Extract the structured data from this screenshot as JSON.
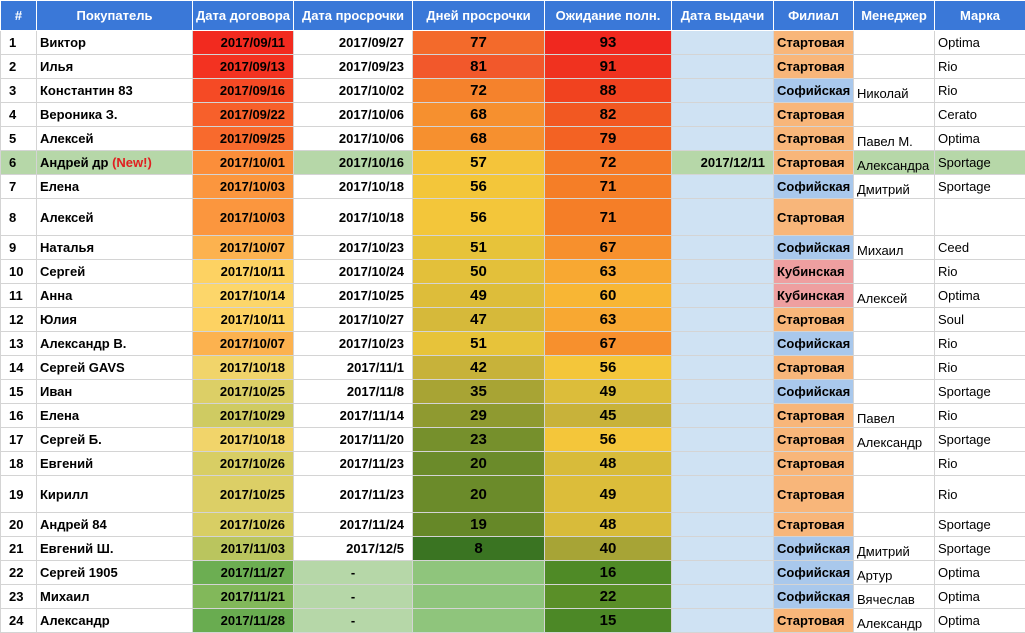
{
  "headers": {
    "num": "#",
    "customer": "Покупатель",
    "contract_date": "Дата договора",
    "overdue_date": "Дата просрочки",
    "overdue_days": "Дней просрочки",
    "waiting": "Ожидание полн.",
    "issue_date": "Дата выдачи",
    "branch": "Филиал",
    "manager": "Менеджер",
    "brand": "Марка"
  },
  "colors": {
    "header_bg": "#3a78d8",
    "branch_startovaya": "#f8b67a",
    "branch_sofiyskaya": "#a9c8ec",
    "branch_kubinskaya": "#ee9fa0",
    "issue_date_empty": "#cfe2f3",
    "highlight_row": "#b6d7a8",
    "new_tag": "#e02020"
  },
  "rows": [
    {
      "n": "1",
      "name": "Виктор",
      "contract": "2017/09/11",
      "overdue": "2017/09/27",
      "days": "77",
      "wait": "93",
      "issue": "",
      "branch": "Стартовая",
      "manager": "",
      "brand": "Optima",
      "c_contract": "#f22a1f",
      "c_days": "#f36a2b",
      "c_wait": "#f0281f"
    },
    {
      "n": "2",
      "name": "Илья",
      "contract": "2017/09/13",
      "overdue": "2017/09/23",
      "days": "81",
      "wait": "91",
      "issue": "",
      "branch": "Стартовая",
      "manager": "",
      "brand": "Rio",
      "c_contract": "#f33221",
      "c_days": "#f2582b",
      "c_wait": "#f0321f"
    },
    {
      "n": "3",
      "name": "Константин 83",
      "contract": "2017/09/16",
      "overdue": "2017/10/02",
      "days": "72",
      "wait": "88",
      "issue": "",
      "branch": "Софийская",
      "manager": "Николай",
      "brand": "Rio",
      "c_contract": "#f54a25",
      "c_days": "#f5822c",
      "c_wait": "#f1421f"
    },
    {
      "n": "4",
      "name": "Вероника З.",
      "contract": "2017/09/22",
      "overdue": "2017/10/06",
      "days": "68",
      "wait": "82",
      "issue": "",
      "branch": "Стартовая",
      "manager": "",
      "brand": "Cerato",
      "c_contract": "#f7602b",
      "c_days": "#f6902f",
      "c_wait": "#f25822"
    },
    {
      "n": "5",
      "name": "Алексей",
      "contract": "2017/09/25",
      "overdue": "2017/10/06",
      "days": "68",
      "wait": "79",
      "issue": "",
      "branch": "Стартовая",
      "manager": "Павел М.",
      "brand": "Optima",
      "c_contract": "#f86a2d",
      "c_days": "#f6902f",
      "c_wait": "#f36223"
    },
    {
      "n": "6",
      "name": "Андрей др",
      "name_tag": "(New!)",
      "contract": "2017/10/01",
      "overdue": "2017/10/16",
      "days": "57",
      "wait": "72",
      "issue": "2017/12/11",
      "branch": "Стартовая",
      "manager": "Александра",
      "brand": "Sportage",
      "c_contract": "#fb8e3a",
      "c_days": "#f4c43a",
      "c_wait": "#f57a27",
      "highlight": true
    },
    {
      "n": "7",
      "name": "Елена",
      "contract": "2017/10/03",
      "overdue": "2017/10/18",
      "days": "56",
      "wait": "71",
      "issue": "",
      "branch": "Софийская",
      "manager": "Дмитрий",
      "brand": "Sportage",
      "c_contract": "#fb963e",
      "c_days": "#f3c63a",
      "c_wait": "#f57e27"
    },
    {
      "n": "8",
      "name": "Алексей",
      "contract": "2017/10/03",
      "overdue": "2017/10/18",
      "days": "56",
      "wait": "71",
      "issue": "",
      "branch": "Стартовая",
      "manager": "",
      "brand": "",
      "c_contract": "#fb963e",
      "c_days": "#f3c63a",
      "c_wait": "#f57e27",
      "tall": true
    },
    {
      "n": "9",
      "name": "Наталья",
      "contract": "2017/10/07",
      "overdue": "2017/10/23",
      "days": "51",
      "wait": "67",
      "issue": "",
      "branch": "Софийская",
      "manager": "Михаил",
      "brand": "Ceed",
      "c_contract": "#fcb24f",
      "c_days": "#e7c33a",
      "c_wait": "#f7902d"
    },
    {
      "n": "10",
      "name": "Сергей",
      "contract": "2017/10/11",
      "overdue": "2017/10/24",
      "days": "50",
      "wait": "63",
      "issue": "",
      "branch": "Кубинская",
      "manager": "",
      "brand": "Rio",
      "c_contract": "#fdd262",
      "c_days": "#e3c03a",
      "c_wait": "#f8a832"
    },
    {
      "n": "11",
      "name": "Анна",
      "contract": "2017/10/14",
      "overdue": "2017/10/25",
      "days": "49",
      "wait": "60",
      "issue": "",
      "branch": "Кубинская",
      "manager": "Алексей",
      "brand": "Optima",
      "c_contract": "#fcd66a",
      "c_days": "#ddbd3a",
      "c_wait": "#f8b634"
    },
    {
      "n": "12",
      "name": "Юлия",
      "contract": "2017/10/11",
      "overdue": "2017/10/27",
      "days": "47",
      "wait": "63",
      "issue": "",
      "branch": "Стартовая",
      "manager": "",
      "brand": "Soul",
      "c_contract": "#fdd262",
      "c_days": "#d6b93a",
      "c_wait": "#f8a832"
    },
    {
      "n": "13",
      "name": "Александр В.",
      "contract": "2017/10/07",
      "overdue": "2017/10/23",
      "days": "51",
      "wait": "67",
      "issue": "",
      "branch": "Софийская",
      "manager": "",
      "brand": "Rio",
      "c_contract": "#fcb24f",
      "c_days": "#e7c33a",
      "c_wait": "#f7902d"
    },
    {
      "n": "14",
      "name": "Сергей GAVS",
      "contract": "2017/10/18",
      "overdue": "2017/11/1",
      "days": "42",
      "wait": "56",
      "issue": "",
      "branch": "Стартовая",
      "manager": "",
      "brand": "Rio",
      "c_contract": "#f1d46a",
      "c_days": "#c7b23a",
      "c_wait": "#f4c63a"
    },
    {
      "n": "15",
      "name": "Иван",
      "contract": "2017/10/25",
      "overdue": "2017/11/8",
      "days": "35",
      "wait": "49",
      "issue": "",
      "branch": "Софийская",
      "manager": "",
      "brand": "Sportage",
      "c_contract": "#dccf66",
      "c_days": "#a8a434",
      "c_wait": "#dcbd3a"
    },
    {
      "n": "16",
      "name": "Елена",
      "contract": "2017/10/29",
      "overdue": "2017/11/14",
      "days": "29",
      "wait": "45",
      "issue": "",
      "branch": "Стартовая",
      "manager": "Павел",
      "brand": "Rio",
      "c_contract": "#cfcb62",
      "c_days": "#8f9a30",
      "c_wait": "#c8b23a"
    },
    {
      "n": "17",
      "name": "Сергей Б.",
      "contract": "2017/10/18",
      "overdue": "2017/11/20",
      "days": "23",
      "wait": "56",
      "issue": "",
      "branch": "Стартовая",
      "manager": "Александр",
      "brand": "Sportage",
      "c_contract": "#f1d46a",
      "c_days": "#76902c",
      "c_wait": "#f4c63a"
    },
    {
      "n": "18",
      "name": "Евгений",
      "contract": "2017/10/26",
      "overdue": "2017/11/23",
      "days": "20",
      "wait": "48",
      "issue": "",
      "branch": "Стартовая",
      "manager": "",
      "brand": "Rio",
      "c_contract": "#d8ce64",
      "c_days": "#6b8b2a",
      "c_wait": "#d8bb3a"
    },
    {
      "n": "19",
      "name": "Кирилл",
      "contract": "2017/10/25",
      "overdue": "2017/11/23",
      "days": "20",
      "wait": "49",
      "issue": "",
      "branch": "Стартовая",
      "manager": "",
      "brand": "Rio",
      "c_contract": "#dccf66",
      "c_days": "#6b8b2a",
      "c_wait": "#dcbd3a",
      "tall": true
    },
    {
      "n": "20",
      "name": "Андрей 84",
      "contract": "2017/10/26",
      "overdue": "2017/11/24",
      "days": "19",
      "wait": "48",
      "issue": "",
      "branch": "Стартовая",
      "manager": "",
      "brand": "Sportage",
      "c_contract": "#d8ce64",
      "c_days": "#668828",
      "c_wait": "#d8bb3a"
    },
    {
      "n": "21",
      "name": "Евгений Ш.",
      "contract": "2017/11/03",
      "overdue": "2017/12/5",
      "days": "8",
      "wait": "40",
      "issue": "",
      "branch": "Софийская",
      "manager": "Дмитрий",
      "brand": "Sportage",
      "c_contract": "#bac55e",
      "c_days": "#3a7422",
      "c_wait": "#a7a436"
    },
    {
      "n": "22",
      "name": "Сергей 1905",
      "contract": "2017/11/27",
      "overdue": "-",
      "days": "",
      "wait": "16",
      "issue": "",
      "branch": "Софийская",
      "manager": "Артур",
      "brand": "Optima",
      "c_contract": "#6cae52",
      "c_days": "#8fc57c",
      "c_wait": "#4f8a26",
      "dash": true
    },
    {
      "n": "23",
      "name": "Михаил",
      "contract": "2017/11/21",
      "overdue": "-",
      "days": "",
      "wait": "22",
      "issue": "",
      "branch": "Софийская",
      "manager": "Вячеслав",
      "brand": "Optima",
      "c_contract": "#82b85a",
      "c_days": "#8fc57c",
      "c_wait": "#5a8f28",
      "dash": true
    },
    {
      "n": "24",
      "name": "Александр",
      "contract": "2017/11/28",
      "overdue": "-",
      "days": "",
      "wait": "15",
      "issue": "",
      "branch": "Стартовая",
      "manager": "Александр",
      "brand": "Optima",
      "c_contract": "#69ac50",
      "c_days": "#8fc57c",
      "c_wait": "#4c8826",
      "dash": true
    }
  ]
}
